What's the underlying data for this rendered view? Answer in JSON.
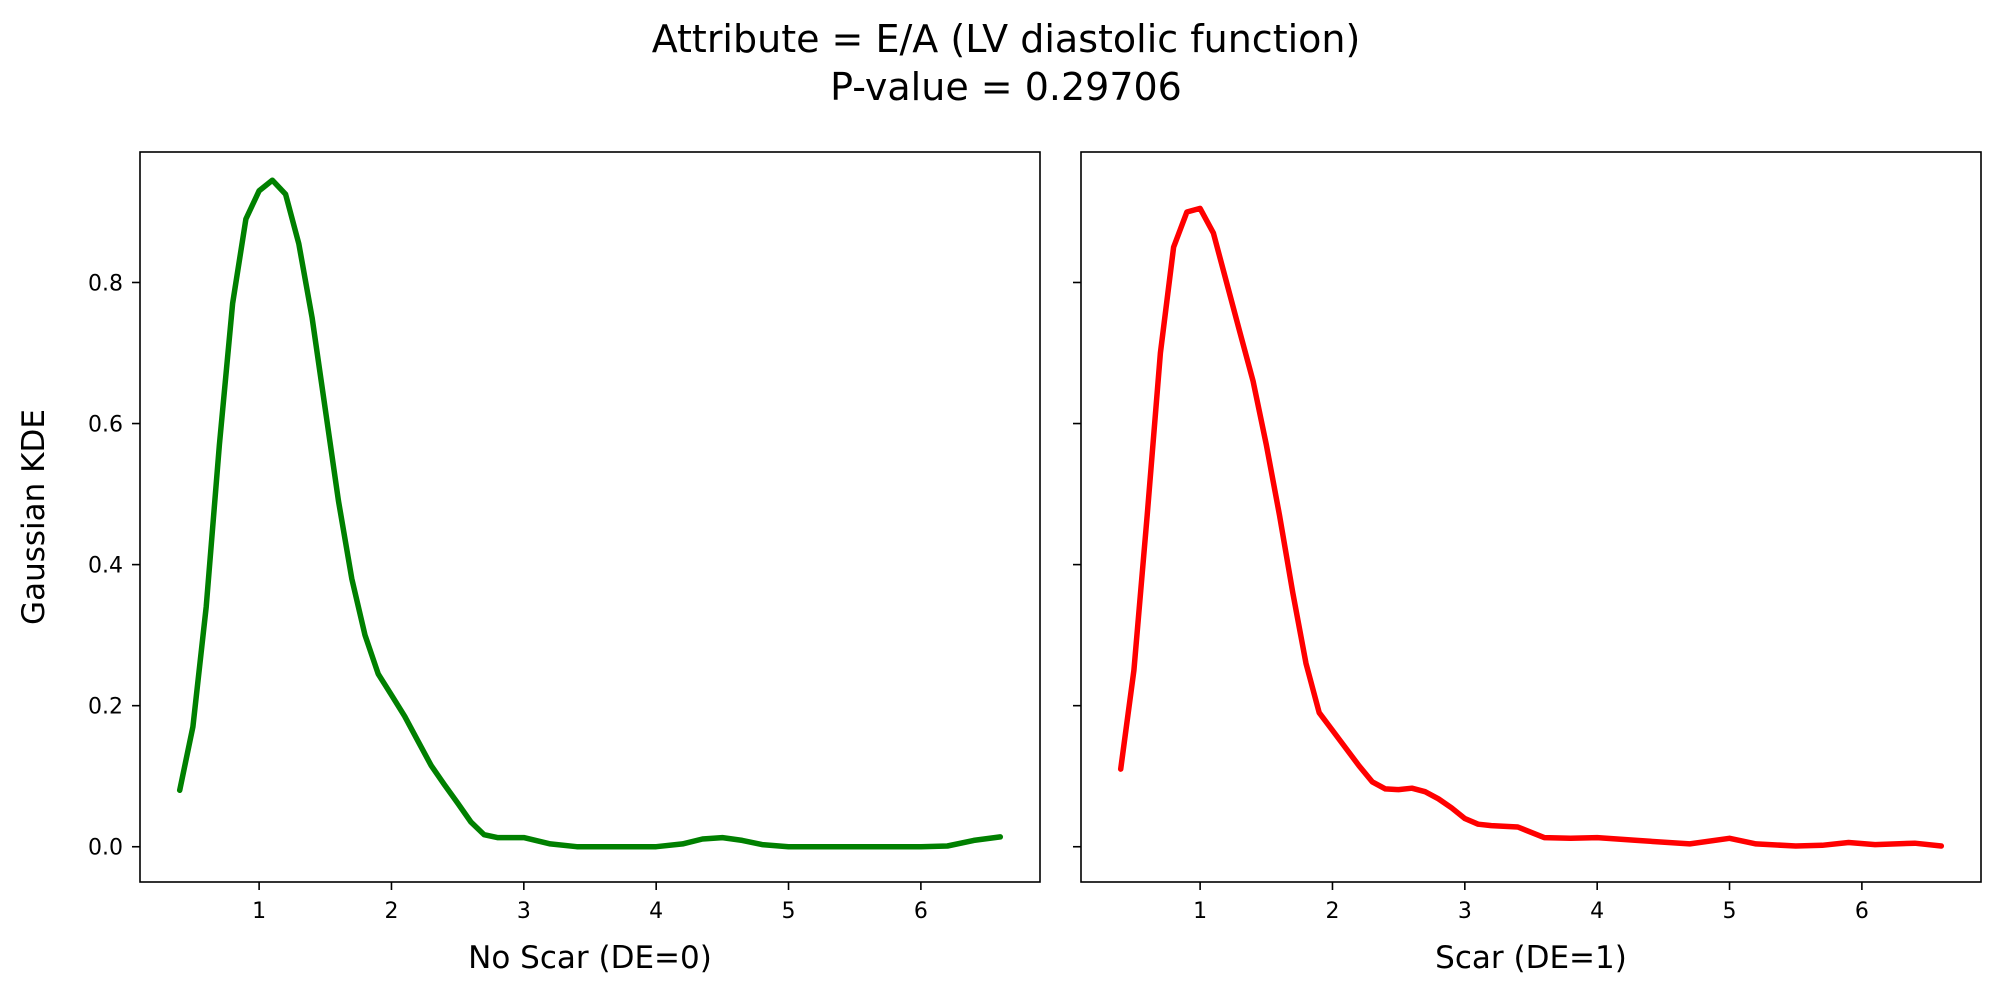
{
  "title": {
    "line1": "Attribute = E/A (LV diastolic function)",
    "line2": "P-value = 0.29706"
  },
  "chart_data": [
    {
      "type": "line",
      "subplot": "left",
      "xlabel": "No Scar (DE=0)",
      "ylabel": "Gaussian KDE",
      "xlim": [
        0.1,
        6.9
      ],
      "ylim": [
        -0.05,
        0.985
      ],
      "xticks": [
        1,
        2,
        3,
        4,
        5,
        6
      ],
      "yticks": [
        0.0,
        0.2,
        0.4,
        0.6,
        0.8
      ],
      "ytick_labels": [
        "0.0",
        "0.2",
        "0.4",
        "0.6",
        "0.8"
      ],
      "show_ytick_labels": true,
      "grid": false,
      "series": [
        {
          "color": "#008000",
          "x": [
            0.4,
            0.5,
            0.6,
            0.7,
            0.8,
            0.9,
            1.0,
            1.1,
            1.2,
            1.3,
            1.4,
            1.5,
            1.6,
            1.7,
            1.8,
            1.9,
            2.0,
            2.1,
            2.2,
            2.3,
            2.4,
            2.5,
            2.6,
            2.7,
            2.8,
            3.0,
            3.2,
            3.4,
            3.6,
            3.8,
            4.0,
            4.2,
            4.35,
            4.5,
            4.65,
            4.8,
            5.0,
            5.5,
            6.0,
            6.2,
            6.4,
            6.6
          ],
          "y": [
            0.08,
            0.17,
            0.34,
            0.57,
            0.77,
            0.89,
            0.93,
            0.945,
            0.925,
            0.855,
            0.75,
            0.62,
            0.49,
            0.38,
            0.3,
            0.245,
            0.215,
            0.185,
            0.15,
            0.115,
            0.088,
            0.062,
            0.035,
            0.017,
            0.013,
            0.013,
            0.004,
            0.0,
            0.0,
            0.0,
            0.0,
            0.004,
            0.011,
            0.013,
            0.009,
            0.003,
            0.0,
            0.0,
            0.0,
            0.001,
            0.009,
            0.014
          ]
        }
      ]
    },
    {
      "type": "line",
      "subplot": "right",
      "xlabel": "Scar (DE=1)",
      "ylabel": "",
      "xlim": [
        0.1,
        6.9
      ],
      "ylim": [
        -0.05,
        0.985
      ],
      "xticks": [
        1,
        2,
        3,
        4,
        5,
        6
      ],
      "yticks": [
        0.0,
        0.2,
        0.4,
        0.6,
        0.8
      ],
      "show_ytick_labels": false,
      "grid": false,
      "series": [
        {
          "color": "#ff0000",
          "x": [
            0.4,
            0.5,
            0.6,
            0.7,
            0.8,
            0.9,
            1.0,
            1.1,
            1.2,
            1.3,
            1.4,
            1.5,
            1.6,
            1.7,
            1.8,
            1.9,
            2.0,
            2.1,
            2.2,
            2.3,
            2.4,
            2.5,
            2.6,
            2.7,
            2.8,
            2.9,
            3.0,
            3.1,
            3.2,
            3.4,
            3.6,
            3.8,
            4.0,
            4.3,
            4.7,
            5.0,
            5.2,
            5.5,
            5.7,
            5.9,
            6.1,
            6.4,
            6.6
          ],
          "y": [
            0.11,
            0.25,
            0.47,
            0.7,
            0.85,
            0.9,
            0.905,
            0.87,
            0.8,
            0.73,
            0.66,
            0.57,
            0.47,
            0.36,
            0.26,
            0.19,
            0.165,
            0.14,
            0.115,
            0.092,
            0.082,
            0.081,
            0.083,
            0.078,
            0.068,
            0.055,
            0.04,
            0.032,
            0.03,
            0.028,
            0.013,
            0.012,
            0.013,
            0.009,
            0.004,
            0.012,
            0.004,
            0.001,
            0.002,
            0.006,
            0.003,
            0.005,
            0.001
          ]
        }
      ]
    }
  ]
}
